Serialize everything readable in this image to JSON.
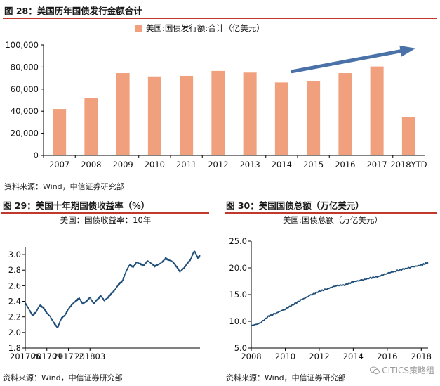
{
  "colors": {
    "bar": "#F0A07C",
    "line": "#1F4E79",
    "rule": "#C0392B",
    "arrow": "#4A72A8"
  },
  "fig28": {
    "title": "图 28：美国历年国债发行金额合计",
    "source": "资料来源：Wind，中信证券研究部"
  },
  "fig29": {
    "title": "图 29：美国十年期国债收益率（%）",
    "source": "资料来源：Wind，中信证券研究部"
  },
  "fig30": {
    "title": "图 30：美国国债总额（万亿美元）",
    "source": "资料来源：Wind，中信证券研究部"
  },
  "watermark": {
    "text": "CITICS策略组",
    "icon": "wechat-icon"
  },
  "chart_data": [
    {
      "id": "fig28",
      "type": "bar",
      "legend": "美国:国债发行额:合计（亿美元）",
      "legend_position": "top-center",
      "categories": [
        "2007",
        "2008",
        "2009",
        "2010",
        "2011",
        "2012",
        "2013",
        "2014",
        "2015",
        "2016",
        "2017",
        "2018YTD"
      ],
      "values": [
        42000,
        52000,
        74500,
        71500,
        72000,
        76500,
        75000,
        66000,
        67500,
        74500,
        80500,
        34500
      ],
      "ylim": [
        0,
        100000
      ],
      "yticks": [
        0,
        20000,
        40000,
        60000,
        80000,
        100000
      ],
      "ytick_labels": [
        "0",
        "20,000",
        "40,000",
        "60,000",
        "80,000",
        "100,000"
      ],
      "annotation": {
        "type": "trend-arrow",
        "from": {
          "x": "2014",
          "y": 76000
        },
        "to": {
          "x": "2018YTD",
          "y": 97000
        }
      }
    },
    {
      "id": "fig29",
      "type": "line",
      "title": "美国：国债收益率：10年",
      "ylim": [
        1.8,
        3.1
      ],
      "yticks": [
        1.8,
        2.0,
        2.2,
        2.4,
        2.6,
        2.8,
        3.0
      ],
      "ytick_labels": [
        "1.8",
        "2.0",
        "2.2",
        "2.4",
        "2.6",
        "2.8",
        "3.0"
      ],
      "xlim": [
        0,
        24.3
      ],
      "xticks": [
        0,
        3,
        6,
        9
      ],
      "xtick_labels": [
        "201706",
        "201709",
        "201712",
        "201803"
      ],
      "x_unit": "months since 2017-06",
      "x": [
        0,
        0.5,
        1,
        1.5,
        2,
        2.5,
        3,
        3.5,
        4,
        4.5,
        5,
        5.5,
        6,
        6.5,
        7,
        7.5,
        8,
        8.5,
        9,
        9.5,
        10,
        10.5,
        11,
        11.5,
        12,
        12.5,
        13,
        13.5,
        14,
        14.5,
        15,
        15.5,
        16,
        16.5,
        17,
        17.5,
        18,
        18.5,
        19,
        19.5,
        20,
        20.5,
        21,
        21.5,
        22,
        22.5,
        23,
        23.5,
        24,
        24.3
      ],
      "values": [
        2.38,
        2.3,
        2.22,
        2.26,
        2.35,
        2.32,
        2.25,
        2.2,
        2.12,
        2.06,
        2.18,
        2.22,
        2.3,
        2.36,
        2.4,
        2.44,
        2.37,
        2.4,
        2.45,
        2.37,
        2.42,
        2.47,
        2.41,
        2.45,
        2.5,
        2.55,
        2.62,
        2.66,
        2.78,
        2.87,
        2.84,
        2.9,
        2.88,
        2.86,
        2.92,
        2.89,
        2.85,
        2.87,
        2.9,
        2.95,
        2.93,
        2.91,
        2.85,
        2.78,
        2.82,
        2.88,
        2.94,
        3.05,
        2.96,
        2.98
      ]
    },
    {
      "id": "fig30",
      "type": "line",
      "title": "美国:国债总额（万亿美元）",
      "ylim": [
        5.0,
        25.0
      ],
      "yticks": [
        5.0,
        10.0,
        15.0,
        20.0,
        25.0
      ],
      "ytick_labels": [
        "5.0",
        "10.0",
        "15.0",
        "20.0",
        "25.0"
      ],
      "xlim": [
        2008,
        2018.4
      ],
      "xticks": [
        2008,
        2010,
        2012,
        2014,
        2016,
        2018
      ],
      "xtick_labels": [
        "2008",
        "2010",
        "2012",
        "2014",
        "2016",
        "2018"
      ],
      "x": [
        2008,
        2008.5,
        2009,
        2009.5,
        2010,
        2010.5,
        2011,
        2011.5,
        2012,
        2012.5,
        2013,
        2013.5,
        2014,
        2014.5,
        2015,
        2015.5,
        2016,
        2016.5,
        2017,
        2017.5,
        2018,
        2018.4
      ],
      "values": [
        9.2,
        9.6,
        10.9,
        11.6,
        12.3,
        13.2,
        14.1,
        14.9,
        15.6,
        16.1,
        16.7,
        16.8,
        17.4,
        17.7,
        18.1,
        18.4,
        19.0,
        19.4,
        19.8,
        20.2,
        20.5,
        21.0
      ]
    }
  ]
}
